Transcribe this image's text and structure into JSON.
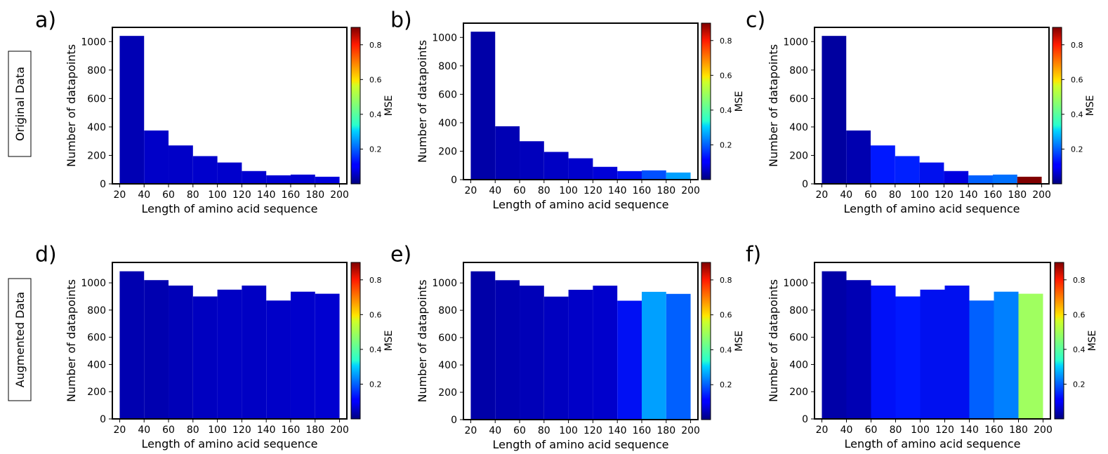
{
  "row_labels": [
    "Original Data",
    "Augmented Data"
  ],
  "colorbar": {
    "label": "MSE",
    "ticks": [
      "0.2",
      "0.4",
      "0.6",
      "0.8"
    ],
    "tick_values": [
      0.2,
      0.4,
      0.6,
      0.8
    ],
    "range": [
      0,
      0.9
    ],
    "colormap": "jet"
  },
  "chart_data": [
    {
      "panel": "a)",
      "type": "bar",
      "xlabel": "Length of amino acid sequence",
      "ylabel": "Number of datapoints",
      "bin_edges": [
        20,
        40,
        60,
        80,
        100,
        120,
        140,
        160,
        180,
        200
      ],
      "x_ticks": [
        "20",
        "40",
        "60",
        "80",
        "100",
        "120",
        "140",
        "160",
        "180",
        "200"
      ],
      "y_ticks": [
        "0",
        "200",
        "400",
        "600",
        "800",
        "1000"
      ],
      "ylim": [
        0,
        1100
      ],
      "values": [
        1040,
        375,
        270,
        195,
        150,
        90,
        60,
        65,
        50
      ],
      "bar_colors": [
        "#0000b4",
        "#0000c8",
        "#0000c8",
        "#0000cc",
        "#0000cc",
        "#0000d0",
        "#0000d4",
        "#0000d4",
        "#0000dc"
      ],
      "colorbar_ticks": [
        "0.2",
        "0.4",
        "0.6",
        "0.8"
      ],
      "colorbar_label": "MSE"
    },
    {
      "panel": "b)",
      "type": "bar",
      "xlabel": "Length of amino acid sequence",
      "ylabel": "Number of datapoints",
      "bin_edges": [
        20,
        40,
        60,
        80,
        100,
        120,
        140,
        160,
        180,
        200
      ],
      "x_ticks": [
        "20",
        "40",
        "60",
        "80",
        "100",
        "120",
        "140",
        "160",
        "180",
        "200"
      ],
      "y_ticks": [
        "0",
        "200",
        "400",
        "600",
        "800",
        "1000"
      ],
      "ylim": [
        0,
        1100
      ],
      "values": [
        1040,
        375,
        270,
        195,
        150,
        90,
        60,
        65,
        50
      ],
      "bar_colors": [
        "#0000a8",
        "#0000b4",
        "#0000bc",
        "#0000c4",
        "#0000cc",
        "#0000d8",
        "#0010f0",
        "#0050ff",
        "#00a0ff"
      ],
      "colorbar_ticks": [
        "0.2",
        "0.4",
        "0.6",
        "0.8"
      ],
      "colorbar_label": "MSE"
    },
    {
      "panel": "c)",
      "type": "bar",
      "xlabel": "Length of amino acid sequence",
      "ylabel": "Number of datapoints",
      "bin_edges": [
        20,
        40,
        60,
        80,
        100,
        120,
        140,
        160,
        180,
        200
      ],
      "x_ticks": [
        "20",
        "40",
        "60",
        "80",
        "100",
        "120",
        "140",
        "160",
        "180",
        "200"
      ],
      "y_ticks": [
        "0",
        "200",
        "400",
        "600",
        "800",
        "1000"
      ],
      "ylim": [
        0,
        1100
      ],
      "values": [
        1040,
        375,
        270,
        195,
        150,
        90,
        60,
        65,
        50
      ],
      "bar_colors": [
        "#0000a0",
        "#0000b0",
        "#0018ff",
        "#0020ff",
        "#0010ee",
        "#0000e0",
        "#0060ff",
        "#0070ff",
        "#800000"
      ],
      "colorbar_ticks": [
        "0.2",
        "0.4",
        "0.6",
        "0.8"
      ],
      "colorbar_label": "MSE"
    },
    {
      "panel": "d)",
      "type": "bar",
      "xlabel": "Length of amino acid sequence",
      "ylabel": "Number of datapoints",
      "bin_edges": [
        20,
        40,
        60,
        80,
        100,
        120,
        140,
        160,
        180,
        200
      ],
      "x_ticks": [
        "20",
        "40",
        "60",
        "80",
        "100",
        "120",
        "140",
        "160",
        "180",
        "200"
      ],
      "y_ticks": [
        "0",
        "200",
        "400",
        "600",
        "800",
        "1000"
      ],
      "ylim": [
        0,
        1150
      ],
      "values": [
        1085,
        1020,
        980,
        900,
        950,
        980,
        870,
        935,
        920
      ],
      "bar_colors": [
        "#0000b0",
        "#0000b0",
        "#0000b8",
        "#0000c0",
        "#0000c4",
        "#0000c4",
        "#0000c8",
        "#0000cc",
        "#0000d0"
      ],
      "colorbar_ticks": [
        "0.2",
        "0.4",
        "0.6",
        "0.8"
      ],
      "colorbar_label": "MSE"
    },
    {
      "panel": "e)",
      "type": "bar",
      "xlabel": "Length of amino acid sequence",
      "ylabel": "Number of datapoints",
      "bin_edges": [
        20,
        40,
        60,
        80,
        100,
        120,
        140,
        160,
        180,
        200
      ],
      "x_ticks": [
        "20",
        "40",
        "60",
        "80",
        "100",
        "120",
        "140",
        "160",
        "180",
        "200"
      ],
      "y_ticks": [
        "0",
        "200",
        "400",
        "600",
        "800",
        "1000"
      ],
      "ylim": [
        0,
        1150
      ],
      "values": [
        1085,
        1020,
        980,
        900,
        950,
        980,
        870,
        935,
        920
      ],
      "bar_colors": [
        "#0000a8",
        "#0000b0",
        "#0000b8",
        "#0000c0",
        "#0000c8",
        "#0000cc",
        "#0010f4",
        "#00a0ff",
        "#0060ff"
      ],
      "colorbar_ticks": [
        "0.2",
        "0.4",
        "0.6",
        "0.8"
      ],
      "colorbar_label": "MSE"
    },
    {
      "panel": "f)",
      "type": "bar",
      "xlabel": "Length of amino acid sequence",
      "ylabel": "Number of datapoints",
      "bin_edges": [
        20,
        40,
        60,
        80,
        100,
        120,
        140,
        160,
        180,
        200
      ],
      "x_ticks": [
        "20",
        "40",
        "60",
        "80",
        "100",
        "120",
        "140",
        "160",
        "180",
        "200"
      ],
      "y_ticks": [
        "0",
        "200",
        "400",
        "600",
        "800",
        "1000"
      ],
      "ylim": [
        0,
        1150
      ],
      "values": [
        1085,
        1020,
        980,
        900,
        950,
        980,
        870,
        935,
        920
      ],
      "bar_colors": [
        "#0000a8",
        "#0000b4",
        "#0010f8",
        "#0018ff",
        "#0010f0",
        "#0010f0",
        "#0060ff",
        "#0080ff",
        "#a0ff60"
      ],
      "colorbar_ticks": [
        "0.2",
        "0.4",
        "0.6",
        "0.8"
      ],
      "colorbar_label": "MSE"
    }
  ]
}
